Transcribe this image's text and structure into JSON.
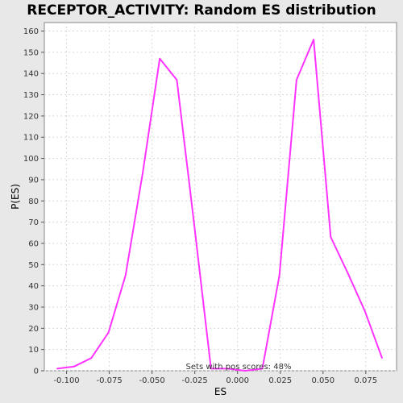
{
  "chart_data": {
    "type": "line",
    "title": "RECEPTOR_ACTIVITY: Random ES distribution",
    "xlabel": "ES",
    "ylabel": "P(ES)",
    "xlim": [
      -0.113,
      0.093
    ],
    "ylim": [
      0,
      164
    ],
    "xticks": [
      -0.1,
      -0.075,
      -0.05,
      -0.025,
      0.0,
      0.025,
      0.05,
      0.075
    ],
    "xtick_labels": [
      "-0.100",
      "-0.075",
      "-0.050",
      "-0.025",
      "0.000",
      "0.025",
      "0.050",
      "0.075"
    ],
    "yticks": [
      0,
      10,
      20,
      30,
      40,
      50,
      60,
      70,
      80,
      90,
      100,
      110,
      120,
      130,
      140,
      150,
      160
    ],
    "ytick_labels": [
      "0",
      "10",
      "20",
      "30",
      "40",
      "50",
      "60",
      "70",
      "80",
      "90",
      "100",
      "110",
      "120",
      "130",
      "140",
      "150",
      "160"
    ],
    "grid": true,
    "series": [
      {
        "color": "#ff33ff",
        "x": [
          -0.1055,
          -0.0955,
          -0.0855,
          -0.0755,
          -0.0655,
          -0.0555,
          -0.0455,
          -0.0355,
          -0.0255,
          -0.0155,
          -0.0055,
          0.0045,
          0.0145,
          0.0245,
          0.0345,
          0.0445,
          0.0545,
          0.0645,
          0.0745,
          0.0845
        ],
        "y": [
          1,
          2,
          6,
          18,
          45,
          93,
          147,
          137,
          70,
          1,
          1,
          0,
          1,
          45,
          137,
          156,
          63,
          46,
          28,
          6
        ]
      }
    ],
    "annotation": "Sets with pos scores: 48%"
  }
}
